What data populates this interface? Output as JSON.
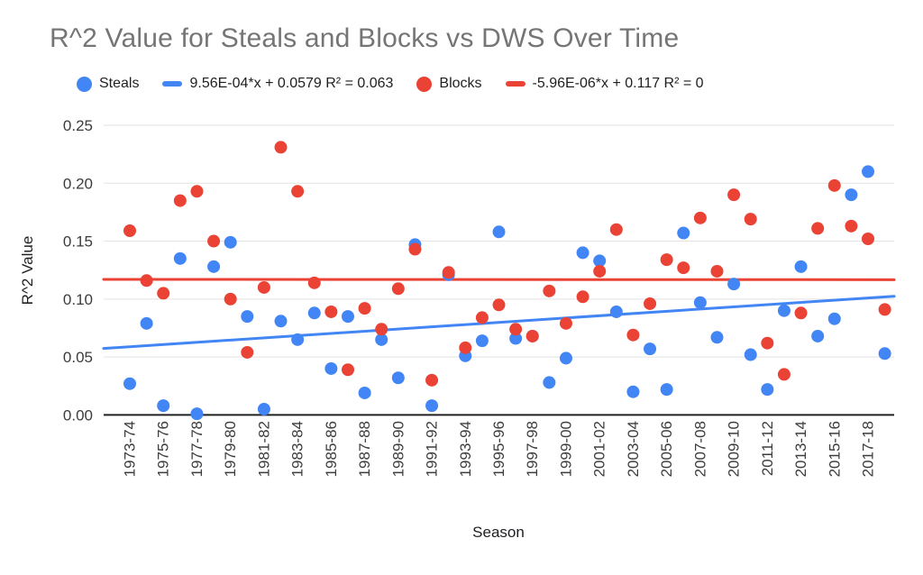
{
  "title": "R^2 Value for Steals and Blocks vs DWS Over Time",
  "legend": {
    "steals_label": "Steals",
    "steals_trend_label": "9.56E-04*x + 0.0579 R² = 0.063",
    "blocks_label": "Blocks",
    "blocks_trend_label": "-5.96E-06*x + 0.117 R² = 0"
  },
  "colors": {
    "steals": "#4285F4",
    "blocks": "#EA4335",
    "title_text": "#757575",
    "tick_text": "#3c3c3c",
    "gridline": "#e2e2e2",
    "axis_line": "#212121"
  },
  "chart_data": {
    "type": "scatter",
    "title": "R^2 Value for Steals and Blocks vs DWS Over Time",
    "xlabel": "Season",
    "ylabel": "R^2 Value",
    "ylim": [
      0,
      0.25
    ],
    "yticks": [
      "0.00",
      "0.05",
      "0.10",
      "0.15",
      "0.20",
      "0.25"
    ],
    "x_tick_every": 2,
    "grid": "horizontal",
    "legend_position": "top",
    "categories": [
      "1973-74",
      "1974-75",
      "1975-76",
      "1976-77",
      "1977-78",
      "1978-79",
      "1979-80",
      "1980-81",
      "1981-82",
      "1982-83",
      "1983-84",
      "1984-85",
      "1985-86",
      "1986-87",
      "1987-88",
      "1988-89",
      "1989-90",
      "1990-91",
      "1991-92",
      "1992-93",
      "1993-94",
      "1994-95",
      "1995-96",
      "1996-97",
      "1997-98",
      "1998-99",
      "1999-00",
      "2000-01",
      "2001-02",
      "2002-03",
      "2003-04",
      "2004-05",
      "2005-06",
      "2006-07",
      "2007-08",
      "2008-09",
      "2009-10",
      "2010-11",
      "2011-12",
      "2012-13",
      "2013-14",
      "2014-15",
      "2015-16",
      "2016-17",
      "2017-18",
      "2018-19"
    ],
    "series": [
      {
        "name": "Steals",
        "color": "#4285F4",
        "values": [
          0.027,
          0.079,
          0.008,
          0.135,
          0.001,
          0.128,
          0.149,
          0.085,
          0.005,
          0.081,
          0.065,
          0.088,
          0.04,
          0.085,
          0.019,
          0.065,
          0.032,
          0.147,
          0.008,
          0.121,
          0.051,
          0.064,
          0.158,
          0.066,
          0.068,
          0.028,
          0.049,
          0.14,
          0.133,
          0.089,
          0.02,
          0.057,
          0.022,
          0.157,
          0.097,
          0.067,
          0.113,
          0.052,
          0.022,
          0.09,
          0.128,
          0.068,
          0.083,
          0.19,
          0.21,
          0.053
        ]
      },
      {
        "name": "Blocks",
        "color": "#EA4335",
        "values": [
          0.159,
          0.116,
          0.105,
          0.185,
          0.193,
          0.15,
          0.1,
          0.054,
          0.11,
          0.231,
          0.193,
          0.114,
          0.089,
          0.039,
          0.092,
          0.074,
          0.109,
          0.143,
          0.03,
          0.123,
          0.058,
          0.084,
          0.095,
          0.074,
          0.068,
          0.107,
          0.079,
          0.102,
          0.124,
          0.16,
          0.069,
          0.096,
          0.134,
          0.127,
          0.17,
          0.124,
          0.19,
          0.169,
          0.062,
          0.035,
          0.088,
          0.161,
          0.198,
          0.163,
          0.152,
          0.091
        ]
      }
    ],
    "trendlines": [
      {
        "series": "Steals",
        "label": "9.56E-04*x + 0.0579 R² = 0.063",
        "slope": 0.000956,
        "intercept": 0.0579,
        "r2": 0.063,
        "color": "#4285F4"
      },
      {
        "series": "Blocks",
        "label": "-5.96E-06*x + 0.117 R² = 0",
        "slope": -5.96e-06,
        "intercept": 0.117,
        "r2": 0,
        "color": "#EA4335"
      }
    ]
  }
}
